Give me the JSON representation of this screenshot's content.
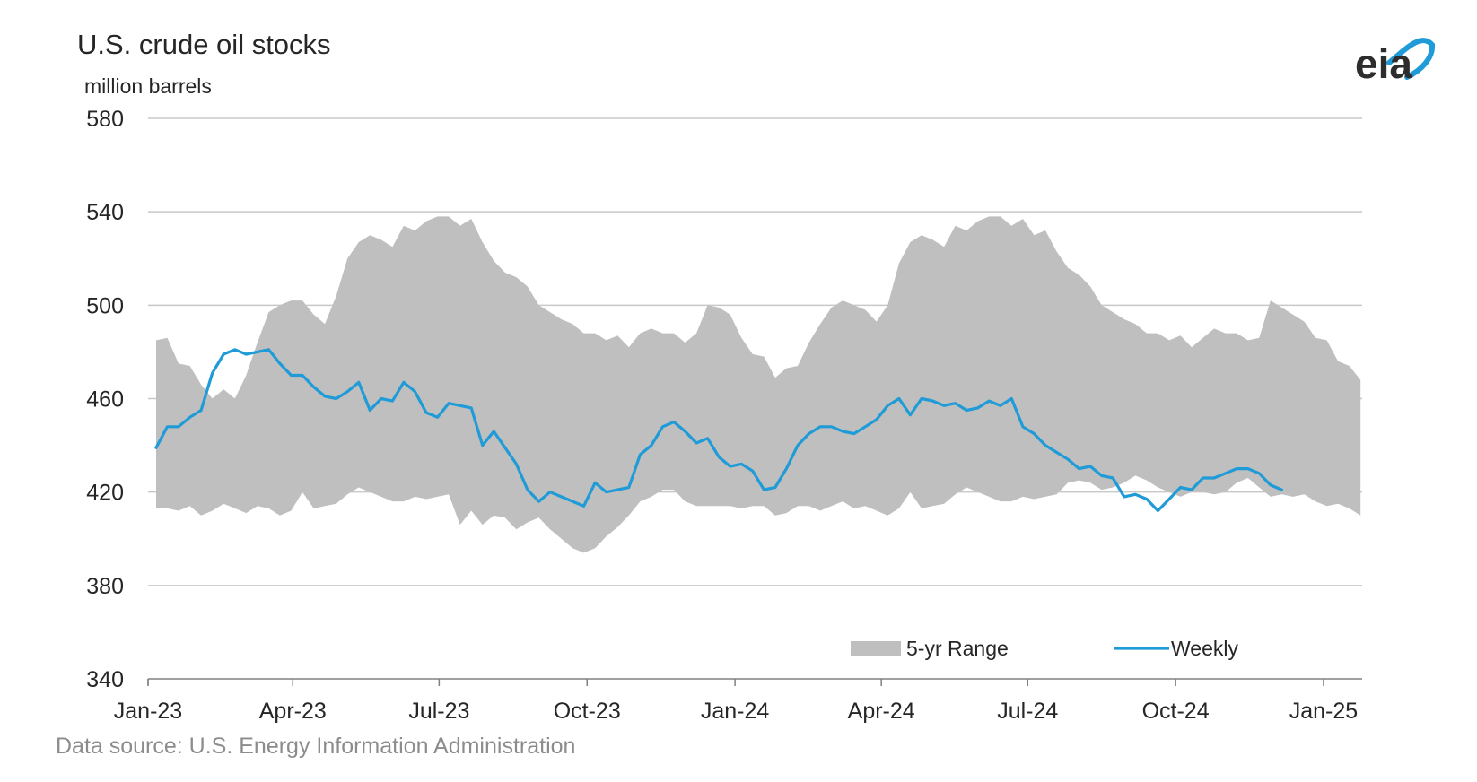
{
  "chart_data": {
    "type": "area",
    "title": "U.S. crude oil stocks",
    "ylabel": "million barrels",
    "xlabel": "",
    "ylim": [
      340,
      580
    ],
    "yticks": [
      "580",
      "540",
      "500",
      "460",
      "420",
      "380",
      "340"
    ],
    "xlim": [
      "2023-01-01",
      "2025-01-25"
    ],
    "xticks": [
      {
        "label": "Jan-23",
        "date": "2023-01-01"
      },
      {
        "label": "Apr-23",
        "date": "2023-04-01"
      },
      {
        "label": "Jul-23",
        "date": "2023-07-01"
      },
      {
        "label": "Oct-23",
        "date": "2023-10-01"
      },
      {
        "label": "Jan-24",
        "date": "2024-01-01"
      },
      {
        "label": "Apr-24",
        "date": "2024-04-01"
      },
      {
        "label": "Jul-24",
        "date": "2024-07-01"
      },
      {
        "label": "Oct-24",
        "date": "2024-10-01"
      },
      {
        "label": "Jan-25",
        "date": "2025-01-01"
      }
    ],
    "grid": true,
    "legend_position": "bottom-right",
    "source": "Data source: U.S. Energy Information Administration",
    "logo": "eia",
    "colors": {
      "range": "#bfbfbf",
      "weekly": "#1f9bd7",
      "grid": "#c8c8c8",
      "axis": "#808080"
    },
    "series": [
      {
        "name": "5-yr Range",
        "kind": "range",
        "x": [
          "2023-01-06",
          "2023-01-13",
          "2023-01-20",
          "2023-01-27",
          "2023-02-03",
          "2023-02-10",
          "2023-02-17",
          "2023-02-24",
          "2023-03-03",
          "2023-03-10",
          "2023-03-17",
          "2023-03-24",
          "2023-03-31",
          "2023-04-07",
          "2023-04-14",
          "2023-04-21",
          "2023-04-28",
          "2023-05-05",
          "2023-05-12",
          "2023-05-19",
          "2023-05-26",
          "2023-06-02",
          "2023-06-09",
          "2023-06-16",
          "2023-06-23",
          "2023-06-30",
          "2023-07-07",
          "2023-07-14",
          "2023-07-21",
          "2023-07-28",
          "2023-08-04",
          "2023-08-11",
          "2023-08-18",
          "2023-08-25",
          "2023-09-01",
          "2023-09-08",
          "2023-09-15",
          "2023-09-22",
          "2023-09-29",
          "2023-10-06",
          "2023-10-13",
          "2023-10-20",
          "2023-10-27",
          "2023-11-03",
          "2023-11-10",
          "2023-11-17",
          "2023-11-24",
          "2023-12-01",
          "2023-12-08",
          "2023-12-15",
          "2023-12-22",
          "2023-12-29",
          "2024-01-05",
          "2024-01-12",
          "2024-01-19",
          "2024-01-26",
          "2024-02-02",
          "2024-02-09",
          "2024-02-16",
          "2024-02-23",
          "2024-03-01",
          "2024-03-08",
          "2024-03-15",
          "2024-03-22",
          "2024-03-29",
          "2024-04-05",
          "2024-04-12",
          "2024-04-19",
          "2024-04-26",
          "2024-05-03",
          "2024-05-10",
          "2024-05-17",
          "2024-05-24",
          "2024-05-31",
          "2024-06-07",
          "2024-06-14",
          "2024-06-21",
          "2024-06-28",
          "2024-07-05",
          "2024-07-12",
          "2024-07-19",
          "2024-07-26",
          "2024-08-02",
          "2024-08-09",
          "2024-08-16",
          "2024-08-23",
          "2024-08-30",
          "2024-09-06",
          "2024-09-13",
          "2024-09-20",
          "2024-09-27",
          "2024-10-04",
          "2024-10-11",
          "2024-10-18",
          "2024-10-25",
          "2024-11-01",
          "2024-11-08",
          "2024-11-15",
          "2024-11-22",
          "2024-11-29",
          "2024-12-06",
          "2024-12-13",
          "2024-12-20",
          "2024-12-27",
          "2025-01-03",
          "2025-01-10",
          "2025-01-17",
          "2025-01-24"
        ],
        "low": [
          413,
          413,
          412,
          414,
          410,
          412,
          415,
          413,
          411,
          414,
          413,
          410,
          412,
          420,
          413,
          414,
          415,
          419,
          422,
          420,
          418,
          416,
          416,
          418,
          417,
          418,
          419,
          406,
          412,
          406,
          410,
          409,
          404,
          407,
          409,
          404,
          400,
          396,
          394,
          396,
          401,
          405,
          410,
          416,
          418,
          421,
          421,
          416,
          414,
          414,
          414,
          414,
          413,
          414,
          414,
          410,
          411,
          414,
          414,
          412,
          414,
          416,
          413,
          414,
          412,
          410,
          413,
          420,
          413,
          414,
          415,
          419,
          422,
          420,
          418,
          416,
          416,
          418,
          417,
          418,
          419,
          424,
          425,
          424,
          421,
          422,
          424,
          427,
          425,
          422,
          420,
          418,
          420,
          420,
          419,
          420,
          424,
          426,
          422,
          418,
          419,
          418,
          419,
          416,
          414,
          415,
          413,
          410
        ],
        "high": [
          485,
          486,
          475,
          474,
          466,
          460,
          464,
          460,
          470,
          484,
          497,
          500,
          502,
          502,
          496,
          492,
          504,
          520,
          527,
          530,
          528,
          525,
          534,
          532,
          536,
          538,
          538,
          534,
          537,
          527,
          519,
          514,
          512,
          508,
          500,
          497,
          494,
          492,
          488,
          488,
          485,
          487,
          482,
          488,
          490,
          488,
          488,
          484,
          488,
          500,
          499,
          496,
          486,
          479,
          478,
          469,
          473,
          474,
          484,
          492,
          499,
          502,
          500,
          498,
          493,
          500,
          518,
          527,
          530,
          528,
          525,
          534,
          532,
          536,
          538,
          538,
          534,
          537,
          530,
          532,
          523,
          516,
          513,
          508,
          500,
          497,
          494,
          492,
          488,
          488,
          485,
          487,
          482,
          486,
          490,
          488,
          488,
          485,
          486,
          502,
          499,
          496,
          493,
          486,
          485,
          476,
          474,
          468
        ]
      },
      {
        "name": "Weekly",
        "kind": "line",
        "x": [
          "2023-01-06",
          "2023-01-13",
          "2023-01-20",
          "2023-01-27",
          "2023-02-03",
          "2023-02-10",
          "2023-02-17",
          "2023-02-24",
          "2023-03-03",
          "2023-03-10",
          "2023-03-17",
          "2023-03-24",
          "2023-03-31",
          "2023-04-07",
          "2023-04-14",
          "2023-04-21",
          "2023-04-28",
          "2023-05-05",
          "2023-05-12",
          "2023-05-19",
          "2023-05-26",
          "2023-06-02",
          "2023-06-09",
          "2023-06-16",
          "2023-06-23",
          "2023-06-30",
          "2023-07-07",
          "2023-07-14",
          "2023-07-21",
          "2023-07-28",
          "2023-08-04",
          "2023-08-11",
          "2023-08-18",
          "2023-08-25",
          "2023-09-01",
          "2023-09-08",
          "2023-09-15",
          "2023-09-22",
          "2023-09-29",
          "2023-10-06",
          "2023-10-13",
          "2023-10-20",
          "2023-10-27",
          "2023-11-03",
          "2023-11-10",
          "2023-11-17",
          "2023-11-24",
          "2023-12-01",
          "2023-12-08",
          "2023-12-15",
          "2023-12-22",
          "2023-12-29",
          "2024-01-05",
          "2024-01-12",
          "2024-01-19",
          "2024-01-26",
          "2024-02-02",
          "2024-02-09",
          "2024-02-16",
          "2024-02-23",
          "2024-03-01",
          "2024-03-08",
          "2024-03-15",
          "2024-03-22",
          "2024-03-29",
          "2024-04-05",
          "2024-04-12",
          "2024-04-19",
          "2024-04-26",
          "2024-05-03",
          "2024-05-10",
          "2024-05-17",
          "2024-05-24",
          "2024-05-31",
          "2024-06-07",
          "2024-06-14",
          "2024-06-21",
          "2024-06-28",
          "2024-07-05",
          "2024-07-12",
          "2024-07-19",
          "2024-07-26",
          "2024-08-02",
          "2024-08-09",
          "2024-08-16",
          "2024-08-23",
          "2024-08-30",
          "2024-09-06",
          "2024-09-13",
          "2024-09-20",
          "2024-09-27",
          "2024-10-04",
          "2024-10-11",
          "2024-10-18",
          "2024-10-25",
          "2024-11-01",
          "2024-11-08",
          "2024-11-15",
          "2024-11-22",
          "2024-11-29",
          "2024-12-06"
        ],
        "values": [
          439,
          448,
          448,
          452,
          455,
          471,
          479,
          481,
          479,
          480,
          481,
          475,
          470,
          470,
          465,
          461,
          460,
          463,
          467,
          455,
          460,
          459,
          467,
          463,
          454,
          452,
          458,
          457,
          456,
          440,
          446,
          439,
          432,
          421,
          416,
          420,
          418,
          416,
          414,
          424,
          420,
          421,
          422,
          436,
          440,
          448,
          450,
          446,
          441,
          443,
          435,
          431,
          432,
          429,
          421,
          422,
          430,
          440,
          445,
          448,
          448,
          446,
          445,
          448,
          451,
          457,
          460,
          453,
          460,
          459,
          457,
          458,
          455,
          456,
          459,
          457,
          460,
          448,
          445,
          440,
          437,
          434,
          430,
          431,
          427,
          426,
          418,
          419,
          417,
          412,
          417,
          422,
          421,
          426,
          426,
          428,
          430,
          430,
          428,
          423,
          421
        ]
      }
    ]
  }
}
